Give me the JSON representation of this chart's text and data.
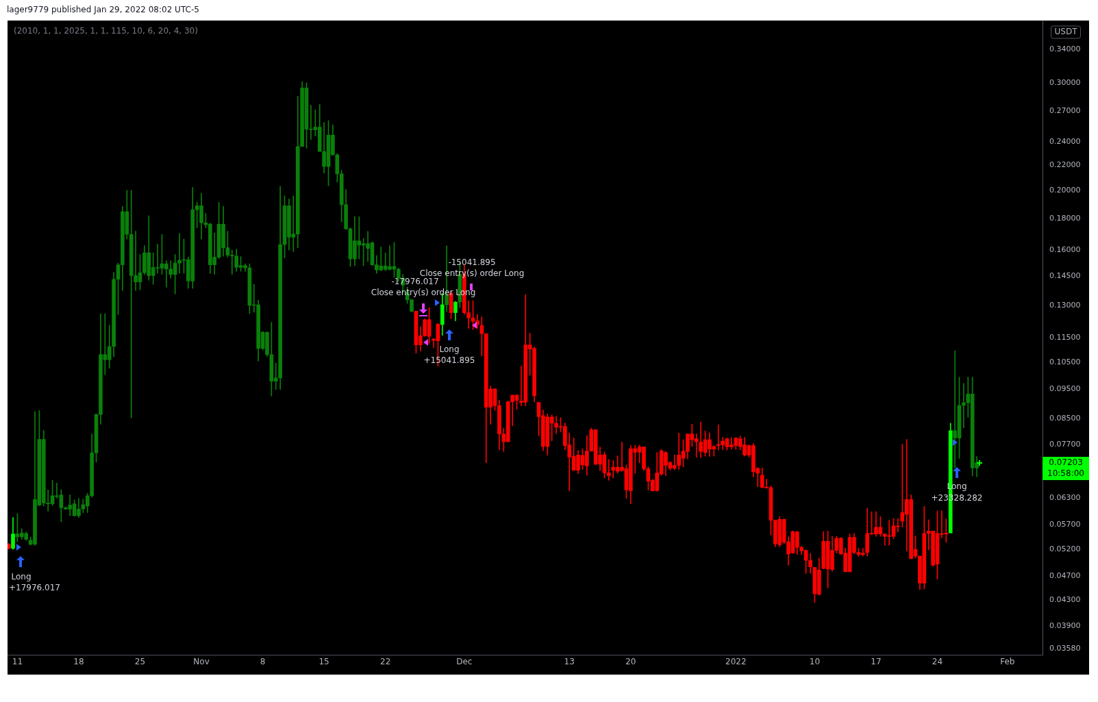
{
  "chart_data": {
    "type": "candlestick",
    "title": "lager9779 published Jan 29, 2022 08:02 UTC-5",
    "subtitle": "(2010, 1, 1, 2025, 1, 1, 115, 10, 6, 20, 4, 30)",
    "log": "y",
    "x": [
      "2021-10-10T00:00",
      "2021-10-10T12:00",
      "2021-10-11T00:00",
      "2021-10-11T12:00",
      "2021-10-12T00:00",
      "2021-10-12T12:00",
      "2021-10-13T00:00",
      "2021-10-13T12:00",
      "2021-10-14T00:00",
      "2021-10-14T12:00",
      "2021-10-15T00:00",
      "2021-10-15T12:00",
      "2021-10-16T00:00",
      "2021-10-16T12:00",
      "2021-10-17T00:00",
      "2021-10-17T12:00",
      "2021-10-18T00:00",
      "2021-10-18T12:00",
      "2021-10-19T00:00",
      "2021-10-19T12:00",
      "2021-10-20T00:00",
      "2021-10-20T12:00",
      "2021-10-21T00:00",
      "2021-10-21T12:00",
      "2021-10-22T00:00",
      "2021-10-22T12:00",
      "2021-10-23T00:00",
      "2021-10-23T12:00",
      "2021-10-24T00:00",
      "2021-10-24T12:00",
      "2021-10-25T00:00",
      "2021-10-25T12:00",
      "2021-10-26T00:00",
      "2021-10-26T12:00",
      "2021-10-27T00:00",
      "2021-10-27T12:00",
      "2021-10-28T00:00",
      "2021-10-28T12:00",
      "2021-10-29T00:00",
      "2021-10-29T12:00",
      "2021-10-30T00:00",
      "2021-10-30T12:00",
      "2021-10-31T00:00",
      "2021-10-31T12:00",
      "2021-11-01T00:00",
      "2021-11-01T12:00",
      "2021-11-02T00:00",
      "2021-11-02T12:00",
      "2021-11-03T00:00",
      "2021-11-03T12:00",
      "2021-11-04T00:00",
      "2021-11-04T12:00",
      "2021-11-05T00:00",
      "2021-11-05T12:00",
      "2021-11-06T00:00",
      "2021-11-06T12:00",
      "2021-11-07T00:00",
      "2021-11-07T12:00",
      "2021-11-08T00:00",
      "2021-11-08T12:00",
      "2021-11-09T00:00",
      "2021-11-09T12:00",
      "2021-11-10T00:00",
      "2021-11-10T12:00",
      "2021-11-11T00:00",
      "2021-11-11T12:00",
      "2021-11-12T00:00",
      "2021-11-12T12:00",
      "2021-11-13T00:00",
      "2021-11-13T12:00",
      "2021-11-14T00:00",
      "2021-11-14T12:00",
      "2021-11-15T00:00",
      "2021-11-15T12:00",
      "2021-11-16T00:00",
      "2021-11-16T12:00",
      "2021-11-17T00:00",
      "2021-11-17T12:00",
      "2021-11-18T00:00",
      "2021-11-18T12:00",
      "2021-11-19T00:00",
      "2021-11-19T12:00",
      "2021-11-20T00:00",
      "2021-11-20T12:00",
      "2021-11-21T00:00",
      "2021-11-21T12:00",
      "2021-11-22T00:00",
      "2021-11-22T12:00",
      "2021-11-23T00:00",
      "2021-11-23T12:00",
      "2021-11-24T00:00",
      "2021-11-24T12:00",
      "2021-11-25T00:00",
      "2021-11-25T12:00",
      "2021-11-26T00:00",
      "2021-11-26T12:00",
      "2021-11-27T00:00",
      "2021-11-27T12:00",
      "2021-11-28T00:00",
      "2021-11-28T12:00",
      "2021-11-29T00:00",
      "2021-11-29T12:00",
      "2021-11-30T00:00",
      "2021-11-30T12:00",
      "2021-12-01T00:00",
      "2021-12-01T12:00",
      "2021-12-02T00:00",
      "2021-12-02T12:00",
      "2021-12-03T00:00",
      "2021-12-03T12:00",
      "2021-12-04T00:00",
      "2021-12-04T12:00",
      "2021-12-05T00:00",
      "2021-12-05T12:00",
      "2021-12-06T00:00",
      "2021-12-06T12:00",
      "2021-12-07T00:00",
      "2021-12-07T12:00",
      "2021-12-08T00:00",
      "2021-12-08T12:00",
      "2021-12-09T00:00",
      "2021-12-09T12:00",
      "2021-12-10T00:00",
      "2021-12-10T12:00",
      "2021-12-11T00:00",
      "2021-12-11T12:00",
      "2021-12-12T00:00",
      "2021-12-12T12:00",
      "2021-12-13T00:00",
      "2021-12-13T12:00",
      "2021-12-14T00:00",
      "2021-12-14T12:00",
      "2021-12-15T00:00",
      "2021-12-15T12:00",
      "2021-12-16T00:00",
      "2021-12-16T12:00",
      "2021-12-17T00:00",
      "2021-12-17T12:00",
      "2021-12-18T00:00",
      "2021-12-18T12:00",
      "2021-12-19T00:00",
      "2021-12-19T12:00",
      "2021-12-20T00:00",
      "2021-12-20T12:00",
      "2021-12-21T00:00",
      "2021-12-21T12:00",
      "2021-12-22T00:00",
      "2021-12-22T12:00",
      "2021-12-23T00:00",
      "2021-12-23T12:00",
      "2021-12-24T00:00",
      "2021-12-24T12:00",
      "2021-12-25T00:00",
      "2021-12-25T12:00",
      "2021-12-26T00:00",
      "2021-12-26T12:00",
      "2021-12-27T00:00",
      "2021-12-27T12:00",
      "2021-12-28T00:00",
      "2021-12-28T12:00",
      "2021-12-29T00:00",
      "2021-12-29T12:00",
      "2021-12-30T00:00",
      "2021-12-30T12:00",
      "2021-12-31T00:00",
      "2021-12-31T12:00",
      "2022-01-01T00:00",
      "2022-01-01T12:00",
      "2022-01-02T00:00",
      "2022-01-02T12:00",
      "2022-01-03T00:00",
      "2022-01-03T12:00",
      "2022-01-04T00:00",
      "2022-01-04T12:00",
      "2022-01-05T00:00",
      "2022-01-05T12:00",
      "2022-01-06T00:00",
      "2022-01-06T12:00",
      "2022-01-07T00:00",
      "2022-01-07T12:00",
      "2022-01-08T00:00",
      "2022-01-08T12:00",
      "2022-01-09T00:00",
      "2022-01-09T12:00",
      "2022-01-10T00:00",
      "2022-01-10T12:00",
      "2022-01-11T00:00",
      "2022-01-11T12:00",
      "2022-01-12T00:00",
      "2022-01-12T12:00",
      "2022-01-13T00:00",
      "2022-01-13T12:00",
      "2022-01-14T00:00",
      "2022-01-14T12:00",
      "2022-01-15T00:00",
      "2022-01-15T12:00",
      "2022-01-16T00:00",
      "2022-01-16T12:00",
      "2022-01-17T00:00",
      "2022-01-17T12:00",
      "2022-01-18T00:00",
      "2022-01-18T12:00",
      "2022-01-19T00:00",
      "2022-01-19T12:00",
      "2022-01-20T00:00",
      "2022-01-20T12:00",
      "2022-01-21T00:00",
      "2022-01-21T12:00",
      "2022-01-22T00:00",
      "2022-01-22T12:00",
      "2022-01-23T00:00",
      "2022-01-23T12:00",
      "2022-01-24T00:00",
      "2022-01-24T12:00",
      "2022-01-25T00:00",
      "2022-01-25T12:00",
      "2022-01-26T00:00",
      "2022-01-26T12:00",
      "2022-01-27T00:00",
      "2022-01-27T12:00",
      "2022-01-28T00:00",
      "2022-01-28T12:00"
    ],
    "ohlc": [
      [
        0.053,
        0.0532,
        0.052,
        0.0522
      ],
      [
        0.0522,
        0.0586,
        0.052,
        0.0551
      ],
      [
        0.0545,
        0.0595,
        0.0535,
        0.0551
      ],
      [
        0.0545,
        0.0562,
        0.054,
        0.0553
      ],
      [
        0.054,
        0.0555,
        0.0538,
        0.0552
      ],
      [
        0.053,
        0.0545,
        0.0528,
        0.0538
      ],
      [
        0.053,
        0.0873,
        0.0528,
        0.0627
      ],
      [
        0.0614,
        0.0876,
        0.0612,
        0.0786
      ],
      [
        0.0619,
        0.0813,
        0.0612,
        0.0786
      ],
      [
        0.0617,
        0.065,
        0.06,
        0.0619
      ],
      [
        0.0617,
        0.0674,
        0.0613,
        0.0636
      ],
      [
        0.0634,
        0.0667,
        0.063,
        0.0636
      ],
      [
        0.0608,
        0.0651,
        0.0577,
        0.0638
      ],
      [
        0.0605,
        0.061,
        0.0604,
        0.0608
      ],
      [
        0.0605,
        0.0638,
        0.059,
        0.0614
      ],
      [
        0.059,
        0.0626,
        0.0589,
        0.0617
      ],
      [
        0.059,
        0.063,
        0.0586,
        0.0605
      ],
      [
        0.0605,
        0.0628,
        0.0597,
        0.0615
      ],
      [
        0.0612,
        0.0642,
        0.0597,
        0.0636
      ],
      [
        0.0636,
        0.0802,
        0.0632,
        0.0747
      ],
      [
        0.0747,
        0.0865,
        0.0722,
        0.0863
      ],
      [
        0.0863,
        0.126,
        0.0832,
        0.1081
      ],
      [
        0.106,
        0.126,
        0.1002,
        0.1081
      ],
      [
        0.106,
        0.1207,
        0.1027,
        0.1114
      ],
      [
        0.1114,
        0.1472,
        0.1072,
        0.1434
      ],
      [
        0.1434,
        0.1524,
        0.1256,
        0.1514
      ],
      [
        0.1514,
        0.1886,
        0.1375,
        0.1849
      ],
      [
        0.1698,
        0.2003,
        0.1668,
        0.1849
      ],
      [
        0.1454,
        0.2003,
        0.0852,
        0.1698
      ],
      [
        0.142,
        0.1718,
        0.1375,
        0.1454
      ],
      [
        0.142,
        0.1574,
        0.1378,
        0.147
      ],
      [
        0.147,
        0.1626,
        0.146,
        0.1584
      ],
      [
        0.1454,
        0.182,
        0.1429,
        0.1584
      ],
      [
        0.1454,
        0.1584,
        0.1407,
        0.1499
      ],
      [
        0.1495,
        0.1636,
        0.1467,
        0.1499
      ],
      [
        0.1495,
        0.1697,
        0.1461,
        0.152
      ],
      [
        0.149,
        0.1538,
        0.1393,
        0.152
      ],
      [
        0.146,
        0.1538,
        0.144,
        0.149
      ],
      [
        0.146,
        0.1574,
        0.1357,
        0.1524
      ],
      [
        0.1524,
        0.1704,
        0.1467,
        0.154
      ],
      [
        0.154,
        0.1668,
        0.1467,
        0.1544
      ],
      [
        0.1425,
        0.1558,
        0.1386,
        0.1544
      ],
      [
        0.1425,
        0.2025,
        0.1386,
        0.1862
      ],
      [
        0.1862,
        0.1915,
        0.174,
        0.189
      ],
      [
        0.1773,
        0.198,
        0.1668,
        0.189
      ],
      [
        0.176,
        0.1837,
        0.174,
        0.1773
      ],
      [
        0.1514,
        0.177,
        0.1466,
        0.1765
      ],
      [
        0.1514,
        0.1706,
        0.1461,
        0.1558
      ],
      [
        0.1558,
        0.1915,
        0.155,
        0.1764
      ],
      [
        0.1614,
        0.1886,
        0.1565,
        0.1764
      ],
      [
        0.157,
        0.1718,
        0.1558,
        0.1614
      ],
      [
        0.1565,
        0.16,
        0.1461,
        0.157
      ],
      [
        0.15,
        0.1606,
        0.1478,
        0.1565
      ],
      [
        0.15,
        0.1562,
        0.1478,
        0.151
      ],
      [
        0.1497,
        0.152,
        0.1478,
        0.151
      ],
      [
        0.13,
        0.152,
        0.126,
        0.1497
      ],
      [
        0.13,
        0.1407,
        0.1267,
        0.1303
      ],
      [
        0.1106,
        0.1326,
        0.1055,
        0.1303
      ],
      [
        0.1106,
        0.118,
        0.11,
        0.1175
      ],
      [
        0.1081,
        0.1178,
        0.1073,
        0.1175
      ],
      [
        0.0978,
        0.122,
        0.0925,
        0.1081
      ],
      [
        0.0978,
        0.1047,
        0.0948,
        0.099
      ],
      [
        0.099,
        0.2033,
        0.0948,
        0.1634
      ],
      [
        0.1634,
        0.1962,
        0.1554,
        0.189
      ],
      [
        0.168,
        0.194,
        0.16,
        0.189
      ],
      [
        0.168,
        0.1962,
        0.159,
        0.17
      ],
      [
        0.17,
        0.2852,
        0.1615,
        0.2362
      ],
      [
        0.2362,
        0.3012,
        0.2362,
        0.2942
      ],
      [
        0.252,
        0.3,
        0.2347,
        0.2942
      ],
      [
        0.2515,
        0.2758,
        0.2424,
        0.252
      ],
      [
        0.2515,
        0.271,
        0.2456,
        0.254
      ],
      [
        0.2318,
        0.2768,
        0.2318,
        0.254
      ],
      [
        0.219,
        0.2586,
        0.2137,
        0.2318
      ],
      [
        0.219,
        0.2602,
        0.2037,
        0.2465
      ],
      [
        0.2288,
        0.2562,
        0.2288,
        0.2465
      ],
      [
        0.2131,
        0.23,
        0.2066,
        0.2288
      ],
      [
        0.1898,
        0.2159,
        0.1779,
        0.2131
      ],
      [
        0.1733,
        0.201,
        0.173,
        0.1898
      ],
      [
        0.1548,
        0.174,
        0.1505,
        0.1733
      ],
      [
        0.1548,
        0.1814,
        0.1509,
        0.1657
      ],
      [
        0.163,
        0.1814,
        0.1548,
        0.1657
      ],
      [
        0.163,
        0.1672,
        0.1509,
        0.164
      ],
      [
        0.161,
        0.1717,
        0.1533,
        0.164
      ],
      [
        0.1514,
        0.165,
        0.1509,
        0.1645
      ],
      [
        0.1485,
        0.1568,
        0.1466,
        0.1514
      ],
      [
        0.1485,
        0.1619,
        0.148,
        0.1508
      ],
      [
        0.1488,
        0.1584,
        0.148,
        0.1508
      ],
      [
        0.1488,
        0.1626,
        0.1485,
        0.1505
      ],
      [
        0.149,
        0.1647,
        0.1445,
        0.1505
      ],
      [
        0.144,
        0.1495,
        0.1423,
        0.149
      ],
      [
        0.1402,
        0.146,
        0.1362,
        0.144
      ],
      [
        0.1328,
        0.1393,
        0.131,
        0.1366
      ],
      [
        0.1272,
        0.133,
        0.1268,
        0.1328
      ],
      [
        0.1272,
        0.1273,
        0.1086,
        0.1121
      ],
      [
        0.116,
        0.12,
        0.1095,
        0.1121
      ],
      [
        0.1232,
        0.1236,
        0.1157,
        0.116
      ],
      [
        0.1232,
        0.1289,
        0.1126,
        0.1157
      ],
      [
        0.1146,
        0.1148,
        0.111,
        0.114
      ],
      [
        0.1212,
        0.1215,
        0.1035,
        0.1138
      ],
      [
        0.121,
        0.1361,
        0.1162,
        0.1303
      ],
      [
        0.1303,
        0.1626,
        0.127,
        0.1352
      ],
      [
        0.1361,
        0.137,
        0.1236,
        0.1265
      ],
      [
        0.1265,
        0.132,
        0.1227,
        0.1316
      ],
      [
        0.1316,
        0.1528,
        0.1289,
        0.146
      ],
      [
        0.146,
        0.1514,
        0.1257,
        0.1265
      ],
      [
        0.1265,
        0.1323,
        0.1193,
        0.124
      ],
      [
        0.124,
        0.1323,
        0.1187,
        0.1225
      ],
      [
        0.1227,
        0.1257,
        0.1193,
        0.121
      ],
      [
        0.1206,
        0.1245,
        0.1076,
        0.1169
      ],
      [
        0.1169,
        0.1169,
        0.072,
        0.0887
      ],
      [
        0.095,
        0.096,
        0.0832,
        0.0887
      ],
      [
        0.095,
        0.0951,
        0.0877,
        0.0892
      ],
      [
        0.0892,
        0.091,
        0.0756,
        0.0802
      ],
      [
        0.0802,
        0.082,
        0.0751,
        0.0779
      ],
      [
        0.0905,
        0.0908,
        0.0779,
        0.0779
      ],
      [
        0.0928,
        0.0928,
        0.0827,
        0.0905
      ],
      [
        0.0928,
        0.093,
        0.088,
        0.091
      ],
      [
        0.0908,
        0.1035,
        0.0892,
        0.0903
      ],
      [
        0.1121,
        0.1354,
        0.0892,
        0.0904
      ],
      [
        0.1121,
        0.1171,
        0.1,
        0.1104
      ],
      [
        0.1106,
        0.1112,
        0.0905,
        0.0926
      ],
      [
        0.0903,
        0.0903,
        0.0796,
        0.0856
      ],
      [
        0.0859,
        0.0878,
        0.0753,
        0.0765
      ],
      [
        0.0855,
        0.0865,
        0.0741,
        0.0765
      ],
      [
        0.0855,
        0.0862,
        0.0782,
        0.0835
      ],
      [
        0.0835,
        0.0857,
        0.0803,
        0.0823
      ],
      [
        0.0825,
        0.0853,
        0.0808,
        0.0823
      ],
      [
        0.0825,
        0.0836,
        0.0756,
        0.0768
      ],
      [
        0.077,
        0.0805,
        0.0648,
        0.0735
      ],
      [
        0.0738,
        0.079,
        0.0699,
        0.07
      ],
      [
        0.0741,
        0.0754,
        0.0691,
        0.07
      ],
      [
        0.074,
        0.0759,
        0.0702,
        0.0714
      ],
      [
        0.0752,
        0.0797,
        0.0687,
        0.0711
      ],
      [
        0.0815,
        0.082,
        0.0752,
        0.0752
      ],
      [
        0.0815,
        0.0815,
        0.0714,
        0.0716
      ],
      [
        0.0741,
        0.0764,
        0.0699,
        0.0716
      ],
      [
        0.0742,
        0.075,
        0.068,
        0.0693
      ],
      [
        0.0693,
        0.0729,
        0.0674,
        0.0686
      ],
      [
        0.0708,
        0.0726,
        0.068,
        0.07
      ],
      [
        0.0708,
        0.0739,
        0.0692,
        0.0697
      ],
      [
        0.0708,
        0.0778,
        0.0697,
        0.0699
      ],
      [
        0.0704,
        0.0714,
        0.063,
        0.065
      ],
      [
        0.0759,
        0.0768,
        0.0617,
        0.0648
      ],
      [
        0.0759,
        0.0769,
        0.0692,
        0.0749
      ],
      [
        0.0764,
        0.0769,
        0.072,
        0.0749
      ],
      [
        0.0764,
        0.0764,
        0.0699,
        0.0704
      ],
      [
        0.0704,
        0.0709,
        0.065,
        0.0672
      ],
      [
        0.0674,
        0.0677,
        0.0647,
        0.0648
      ],
      [
        0.0693,
        0.0748,
        0.0647,
        0.0648
      ],
      [
        0.0753,
        0.0757,
        0.0687,
        0.069
      ],
      [
        0.0748,
        0.0751,
        0.0686,
        0.0713
      ],
      [
        0.0721,
        0.0723,
        0.07,
        0.0705
      ],
      [
        0.0713,
        0.0741,
        0.0701,
        0.0705
      ],
      [
        0.0741,
        0.0805,
        0.0702,
        0.0713
      ],
      [
        0.0752,
        0.0785,
        0.0709,
        0.0732
      ],
      [
        0.0802,
        0.0802,
        0.073,
        0.0751
      ],
      [
        0.0802,
        0.0832,
        0.0765,
        0.0785
      ],
      [
        0.0788,
        0.0802,
        0.0735,
        0.0779
      ],
      [
        0.0778,
        0.0839,
        0.0734,
        0.0751
      ],
      [
        0.0785,
        0.0811,
        0.0738,
        0.0748
      ],
      [
        0.0785,
        0.0806,
        0.0737,
        0.0758
      ],
      [
        0.0765,
        0.0768,
        0.0738,
        0.0758
      ],
      [
        0.0771,
        0.083,
        0.0755,
        0.0768
      ],
      [
        0.0781,
        0.0792,
        0.0756,
        0.077
      ],
      [
        0.0788,
        0.079,
        0.0755,
        0.0764
      ],
      [
        0.077,
        0.0791,
        0.0758,
        0.0764
      ],
      [
        0.079,
        0.0791,
        0.0757,
        0.0768
      ],
      [
        0.0788,
        0.0796,
        0.0756,
        0.0765
      ],
      [
        0.077,
        0.0792,
        0.0738,
        0.0741
      ],
      [
        0.0768,
        0.077,
        0.0735,
        0.0741
      ],
      [
        0.0768,
        0.0774,
        0.0683,
        0.0696
      ],
      [
        0.0705,
        0.0707,
        0.0658,
        0.0692
      ],
      [
        0.0687,
        0.0706,
        0.0655,
        0.0656
      ],
      [
        0.0657,
        0.0677,
        0.0654,
        0.0655
      ],
      [
        0.0656,
        0.066,
        0.0549,
        0.058
      ],
      [
        0.058,
        0.0581,
        0.0525,
        0.0531
      ],
      [
        0.0582,
        0.0588,
        0.0525,
        0.0529
      ],
      [
        0.0582,
        0.0583,
        0.0531,
        0.0534
      ],
      [
        0.0535,
        0.0545,
        0.049,
        0.0511
      ],
      [
        0.0556,
        0.0557,
        0.0512,
        0.0513
      ],
      [
        0.0555,
        0.0557,
        0.051,
        0.0524
      ],
      [
        0.0524,
        0.0526,
        0.051,
        0.0517
      ],
      [
        0.0518,
        0.0519,
        0.0475,
        0.0499
      ],
      [
        0.0499,
        0.0512,
        0.0475,
        0.0487
      ],
      [
        0.0486,
        0.0486,
        0.0426,
        0.044
      ],
      [
        0.0481,
        0.0503,
        0.0438,
        0.0439
      ],
      [
        0.0536,
        0.0556,
        0.0483,
        0.0484
      ],
      [
        0.0536,
        0.0557,
        0.045,
        0.0483
      ],
      [
        0.0518,
        0.0546,
        0.0479,
        0.0482
      ],
      [
        0.0542,
        0.0546,
        0.0513,
        0.0518
      ],
      [
        0.0542,
        0.0544,
        0.051,
        0.0511
      ],
      [
        0.0513,
        0.0522,
        0.0478,
        0.0478
      ],
      [
        0.0544,
        0.0551,
        0.0478,
        0.0478
      ],
      [
        0.0544,
        0.0552,
        0.0511,
        0.0514
      ],
      [
        0.0514,
        0.0522,
        0.0506,
        0.051
      ],
      [
        0.0513,
        0.0522,
        0.0507,
        0.051
      ],
      [
        0.0552,
        0.0607,
        0.0507,
        0.0514
      ],
      [
        0.0552,
        0.0599,
        0.0549,
        0.0551
      ],
      [
        0.0565,
        0.0599,
        0.0546,
        0.0551
      ],
      [
        0.0565,
        0.0588,
        0.0546,
        0.0551
      ],
      [
        0.0551,
        0.0551,
        0.0528,
        0.0546
      ],
      [
        0.0547,
        0.058,
        0.0528,
        0.0546
      ],
      [
        0.0568,
        0.0584,
        0.0541,
        0.0546
      ],
      [
        0.0567,
        0.0584,
        0.0555,
        0.0566
      ],
      [
        0.0597,
        0.0772,
        0.0565,
        0.0578
      ],
      [
        0.0627,
        0.0786,
        0.0517,
        0.0593
      ],
      [
        0.0627,
        0.0638,
        0.0502,
        0.0502
      ],
      [
        0.052,
        0.0547,
        0.0503,
        0.0507
      ],
      [
        0.0507,
        0.0507,
        0.0447,
        0.0458
      ],
      [
        0.0552,
        0.0611,
        0.0448,
        0.0458
      ],
      [
        0.0557,
        0.0581,
        0.0519,
        0.0552
      ],
      [
        0.0557,
        0.0557,
        0.0488,
        0.049
      ],
      [
        0.0552,
        0.0601,
        0.0465,
        0.0492
      ],
      [
        0.0551,
        0.0601,
        0.0543,
        0.055
      ],
      [
        0.0553,
        0.0583,
        0.0534,
        0.0551
      ],
      [
        0.0553,
        0.0835,
        0.0553,
        0.0812
      ],
      [
        0.079,
        0.1096,
        0.0706,
        0.0812
      ],
      [
        0.079,
        0.0993,
        0.0732,
        0.0893
      ],
      [
        0.0893,
        0.097,
        0.0821,
        0.0902
      ],
      [
        0.0902,
        0.0993,
        0.0854,
        0.0932
      ],
      [
        0.0706,
        0.0993,
        0.0685,
        0.0932
      ],
      [
        0.0706,
        0.0737,
        0.0683,
        0.072
      ]
    ],
    "colors": [
      "#ff0000",
      "#00ff00",
      "#0a800a",
      "#0a800a",
      "#0a800a",
      "#0a800a",
      "#0a800a",
      "#0a800a",
      "#0a800a",
      "#0a800a",
      "#0a800a",
      "#0a800a",
      "#0a800a",
      "#0a800a",
      "#0a800a",
      "#0a800a",
      "#0a800a",
      "#0a800a",
      "#0a800a",
      "#0a800a",
      "#0a800a",
      "#0a800a",
      "#0a800a",
      "#0a800a",
      "#0a800a",
      "#0a800a",
      "#0a800a",
      "#0a800a",
      "#0a800a",
      "#0a800a",
      "#0a800a",
      "#0a800a",
      "#0a800a",
      "#0a800a",
      "#0a800a",
      "#0a800a",
      "#0a800a",
      "#0a800a",
      "#0a800a",
      "#0a800a",
      "#0a800a",
      "#0a800a",
      "#0a800a",
      "#0a800a",
      "#0a800a",
      "#0a800a",
      "#0a800a",
      "#0a800a",
      "#0a800a",
      "#0a800a",
      "#0a800a",
      "#0a800a",
      "#0a800a",
      "#0a800a",
      "#0a800a",
      "#0a800a",
      "#0a800a",
      "#0a800a",
      "#0a800a",
      "#0a800a",
      "#0a800a",
      "#0a800a",
      "#0a800a",
      "#0a800a",
      "#0a800a",
      "#0a800a",
      "#0a800a",
      "#0a800a",
      "#0a800a",
      "#0a800a",
      "#0a800a",
      "#0a800a",
      "#0a800a",
      "#0a800a",
      "#0a800a",
      "#0a800a",
      "#0a800a",
      "#0a800a",
      "#0a800a",
      "#0a800a",
      "#0a800a",
      "#0a800a",
      "#0a800a",
      "#0a800a",
      "#0a800a",
      "#0a800a",
      "#0a800a",
      "#0a800a",
      "#0a800a",
      "#0a800a",
      "#0a800a",
      "#0a800a",
      "#0a800a",
      "#ff0000",
      "#ff0000",
      "#ff0000",
      "#ff0000",
      "#ff0000",
      "#ff0000",
      "#00ff00",
      "#0a800a",
      "#ff0000",
      "#00ff00",
      "#0a800a",
      "#ff0000",
      "#ff0000",
      "#ff0000",
      "#ff0000",
      "#ff0000",
      "#ff0000",
      "#ff0000",
      "#ff0000",
      "#ff0000",
      "#ff0000",
      "#ff0000",
      "#ff0000",
      "#ff0000",
      "#ff0000",
      "#ff0000",
      "#ff0000",
      "#ff0000",
      "#ff0000",
      "#ff0000",
      "#ff0000",
      "#ff0000",
      "#ff0000",
      "#ff0000",
      "#ff0000",
      "#ff0000",
      "#ff0000",
      "#ff0000",
      "#ff0000",
      "#ff0000",
      "#ff0000",
      "#ff0000",
      "#ff0000",
      "#ff0000",
      "#ff0000",
      "#ff0000",
      "#ff0000",
      "#ff0000",
      "#ff0000",
      "#ff0000",
      "#ff0000",
      "#ff0000",
      "#ff0000",
      "#ff0000",
      "#ff0000",
      "#ff0000",
      "#ff0000",
      "#ff0000",
      "#ff0000",
      "#ff0000",
      "#ff0000",
      "#ff0000",
      "#ff0000",
      "#ff0000",
      "#ff0000",
      "#ff0000",
      "#ff0000",
      "#ff0000",
      "#ff0000",
      "#ff0000",
      "#ff0000",
      "#ff0000",
      "#ff0000",
      "#ff0000",
      "#ff0000",
      "#ff0000",
      "#ff0000",
      "#ff0000",
      "#ff0000",
      "#ff0000",
      "#ff0000",
      "#ff0000",
      "#ff0000",
      "#ff0000",
      "#ff0000",
      "#ff0000",
      "#ff0000",
      "#ff0000",
      "#ff0000",
      "#ff0000",
      "#ff0000",
      "#ff0000",
      "#ff0000",
      "#ff0000",
      "#ff0000",
      "#ff0000",
      "#ff0000",
      "#ff0000",
      "#ff0000",
      "#ff0000",
      "#ff0000",
      "#ff0000",
      "#ff0000",
      "#ff0000",
      "#ff0000",
      "#ff0000",
      "#ff0000",
      "#ff0000",
      "#ff0000",
      "#ff0000",
      "#ff0000",
      "#ff0000",
      "#ff0000",
      "#ff0000",
      "#ff0000",
      "#ff0000",
      "#ff0000",
      "#ff0000",
      "#ff0000",
      "#ff0000",
      "#ff0000",
      "#ff0000",
      "#00ff00",
      "#0a800a",
      "#0a800a",
      "#0a800a",
      "#0a800a",
      "#0a800a",
      "#0a800a"
    ],
    "xlim": [
      "2021-10-09T21:00",
      "2022-02-05T00:00"
    ],
    "xticks": [
      {
        "value": "2021-10-11",
        "label": "11"
      },
      {
        "value": "2021-10-18",
        "label": "18"
      },
      {
        "value": "2021-10-25",
        "label": "25"
      },
      {
        "value": "2021-11-01",
        "label": "Nov"
      },
      {
        "value": "2021-11-08",
        "label": "8"
      },
      {
        "value": "2021-11-15",
        "label": "15"
      },
      {
        "value": "2021-11-22",
        "label": "22"
      },
      {
        "value": "2021-12-01",
        "label": "Dec"
      },
      {
        "value": "2021-12-13",
        "label": "13"
      },
      {
        "value": "2021-12-20",
        "label": "20"
      },
      {
        "value": "2022-01-01",
        "label": "2022"
      },
      {
        "value": "2022-01-10",
        "label": "10"
      },
      {
        "value": "2022-01-17",
        "label": "17"
      },
      {
        "value": "2022-01-24",
        "label": "24"
      },
      {
        "value": "2022-02-01",
        "label": "Feb"
      }
    ],
    "ylim": [
      0.035,
      0.379
    ],
    "yticks": [
      {
        "value": 0.0358,
        "label": "0.03580"
      },
      {
        "value": 0.039,
        "label": "0.03900"
      },
      {
        "value": 0.043,
        "label": "0.04300"
      },
      {
        "value": 0.047,
        "label": "0.04700"
      },
      {
        "value": 0.052,
        "label": "0.05200"
      },
      {
        "value": 0.057,
        "label": "0.05700"
      },
      {
        "value": 0.063,
        "label": "0.06300"
      },
      {
        "value": 0.077,
        "label": "0.07700"
      },
      {
        "value": 0.085,
        "label": "0.08500"
      },
      {
        "value": 0.095,
        "label": "0.09500"
      },
      {
        "value": 0.105,
        "label": "0.10500"
      },
      {
        "value": 0.115,
        "label": "0.11500"
      },
      {
        "value": 0.13,
        "label": "0.13000"
      },
      {
        "value": 0.145,
        "label": "0.14500"
      },
      {
        "value": 0.16,
        "label": "0.16000"
      },
      {
        "value": 0.18,
        "label": "0.18000"
      },
      {
        "value": 0.2,
        "label": "0.20000"
      },
      {
        "value": 0.22,
        "label": "0.22000"
      },
      {
        "value": 0.24,
        "label": "0.24000"
      },
      {
        "value": 0.27,
        "label": "0.27000"
      },
      {
        "value": 0.3,
        "label": "0.30000"
      },
      {
        "value": 0.34,
        "label": "0.34000"
      }
    ],
    "annotations": [
      "Long",
      "+17976.017",
      "Close entry(s) order Long",
      "-17976.017",
      "Long",
      "+15041.895",
      "Close entry(s) order Long",
      "-15041.895",
      "Long",
      "+23328.282",
      "0.07203\n10:58:00",
      "USDT"
    ]
  }
}
